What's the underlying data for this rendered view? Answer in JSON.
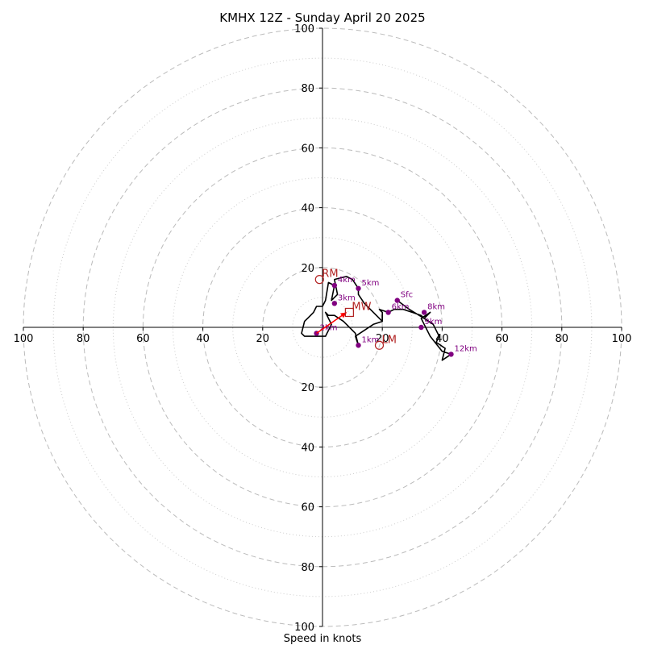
{
  "chart_data": {
    "type": "hodograph",
    "title": "KMHX 12Z - Sunday April 20 2025",
    "xlabel": "Speed in knots",
    "xlim": [
      -100,
      100
    ],
    "ylim": [
      -100,
      100
    ],
    "rings_major": [
      20,
      40,
      60,
      80,
      100
    ],
    "rings_minor": [
      10,
      30,
      50,
      70,
      90
    ],
    "x_tick_labels": [
      "100",
      "80",
      "60",
      "40",
      "20",
      "20",
      "40",
      "60",
      "80",
      "100"
    ],
    "y_tick_labels": [
      "100",
      "80",
      "60",
      "40",
      "20",
      "20",
      "40",
      "60",
      "80",
      "100"
    ],
    "ticks": [
      -100,
      -80,
      -60,
      -40,
      -20,
      20,
      40,
      60,
      80,
      100
    ],
    "grid": true,
    "colors": {
      "trace": "#000000",
      "markers": "#800080",
      "motion": "#b22222",
      "arrow": "#ff0000",
      "grid": "#bbbbbb"
    },
    "hodograph_trace": [
      [
        25,
        9
      ],
      [
        29,
        6
      ],
      [
        34,
        3
      ],
      [
        37,
        1
      ],
      [
        39,
        -3
      ],
      [
        38,
        -5
      ],
      [
        41,
        -7
      ],
      [
        40,
        -11
      ],
      [
        43,
        -9
      ],
      [
        40,
        -8
      ],
      [
        36,
        -3
      ],
      [
        34,
        1
      ],
      [
        33,
        3
      ],
      [
        36,
        5
      ],
      [
        34,
        3
      ],
      [
        33,
        4
      ],
      [
        30,
        5
      ],
      [
        27,
        6
      ],
      [
        24,
        6
      ],
      [
        22,
        5
      ],
      [
        19,
        6
      ],
      [
        20,
        5
      ],
      [
        20,
        2
      ],
      [
        17,
        5
      ],
      [
        14,
        8
      ],
      [
        12,
        11
      ],
      [
        12,
        13
      ],
      [
        10,
        16
      ],
      [
        8,
        17
      ],
      [
        4,
        16
      ],
      [
        5,
        11
      ],
      [
        3,
        9
      ],
      [
        4,
        14
      ],
      [
        2,
        15
      ],
      [
        1,
        9
      ],
      [
        0,
        7
      ],
      [
        -2,
        7
      ],
      [
        -3,
        5
      ],
      [
        -4,
        4
      ],
      [
        -6,
        2
      ],
      [
        -7,
        -2
      ],
      [
        -6,
        -3
      ],
      [
        -2,
        -3
      ],
      [
        -1,
        -3
      ],
      [
        1,
        -3
      ],
      [
        3,
        1
      ],
      [
        1,
        5
      ],
      [
        2,
        4
      ],
      [
        4,
        4
      ],
      [
        7,
        2
      ],
      [
        10,
        -1
      ],
      [
        11,
        -2
      ],
      [
        12,
        -6
      ],
      [
        11,
        -3
      ],
      [
        17,
        1
      ],
      [
        20,
        2
      ]
    ],
    "height_markers": [
      {
        "label": "Sfc",
        "u": 25,
        "v": 9
      },
      {
        "label": "1km",
        "u": 12,
        "v": -6
      },
      {
        "label": "2km",
        "u": -2,
        "v": -2
      },
      {
        "label": "3km",
        "u": 4,
        "v": 8
      },
      {
        "label": "4km",
        "u": 4,
        "v": 14
      },
      {
        "label": "5km",
        "u": 12,
        "v": 13
      },
      {
        "label": "6km",
        "u": 22,
        "v": 5
      },
      {
        "label": "8km",
        "u": 34,
        "v": 5
      },
      {
        "label": "9km",
        "u": 33,
        "v": 0
      },
      {
        "label": "12km",
        "u": 43,
        "v": -9
      }
    ],
    "storm_motions": [
      {
        "label": "RM",
        "u": -1,
        "v": 16,
        "marker": "circle"
      },
      {
        "label": "LM",
        "u": 19,
        "v": -6,
        "marker": "circle"
      },
      {
        "label": "MW",
        "u": 9,
        "v": 5,
        "marker": "square"
      }
    ],
    "arrow": {
      "from": [
        -2,
        -2
      ],
      "to": [
        8,
        5
      ]
    }
  }
}
